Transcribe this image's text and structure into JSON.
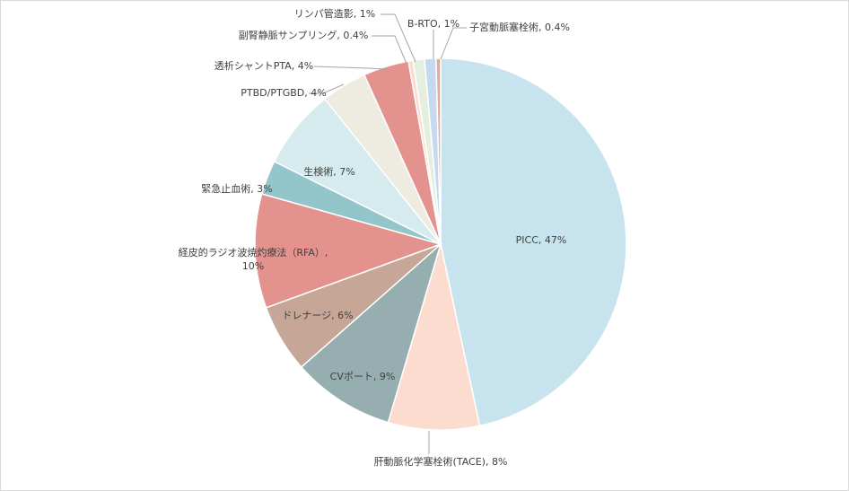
{
  "chart_data": {
    "type": "pie",
    "title": "",
    "legend": "none",
    "slices": [
      {
        "label": "PICC",
        "value": 47,
        "display": "PICC, 47%",
        "color": "#c7e3ee"
      },
      {
        "label": "肝動脈化学塞栓術(TACE)",
        "value": 8,
        "display": "肝動脈化学塞栓術(TACE), 8%",
        "color": "#fcdccf"
      },
      {
        "label": "CVポート",
        "value": 9,
        "display": "CVポート, 9%",
        "color": "#97aeb1"
      },
      {
        "label": "ドレナージ",
        "value": 6,
        "display": "ドレナージ, 6%",
        "color": "#c6a697"
      },
      {
        "label": "経皮的ラジオ波焼灼療法（RFA）",
        "value": 10,
        "display": [
          "経皮的ラジオ波焼灼療法（RFA）,",
          "10%"
        ],
        "color": "#e3928e"
      },
      {
        "label": "緊急止血術",
        "value": 3,
        "display": "緊急止血術, 3%",
        "color": "#93c6cb"
      },
      {
        "label": "生検術",
        "value": 7,
        "display": "生検術, 7%",
        "color": "#d6ebee"
      },
      {
        "label": "PTBD/PTGBD",
        "value": 4,
        "display": "PTBD/PTGBD, 4%",
        "color": "#eeebe1"
      },
      {
        "label": "透析シャントPTA",
        "value": 4,
        "display": "透析シャントPTA, 4%",
        "color": "#e3928e"
      },
      {
        "label": "副腎静脈サンプリング",
        "value": 0.4,
        "display": "副腎静脈サンプリング, 0.4%",
        "color": "#fcdccf"
      },
      {
        "label": "リンパ管造影",
        "value": 1,
        "display": "リンパ管造影, 1%",
        "color": "#e4efdf"
      },
      {
        "label": "B-RTO",
        "value": 1,
        "display": "B-RTO, 1%",
        "color": "#c5d9f1"
      },
      {
        "label": "子宮動脈塞栓術",
        "value": 0.4,
        "display": "子宮動脈塞栓術, 0.4%",
        "color": "#e8a89a"
      }
    ]
  }
}
